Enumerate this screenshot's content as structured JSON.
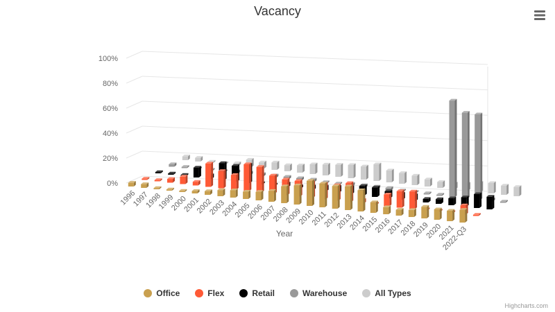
{
  "chart_data": {
    "type": "bar",
    "render": "3d-column",
    "title": "Vacancy",
    "xlabel": "Year",
    "ylabel": "",
    "ylim": [
      0,
      100
    ],
    "y_ticks": [
      "0%",
      "20%",
      "40%",
      "60%",
      "80%",
      "100%"
    ],
    "grid": true,
    "legend_position": "bottom-center",
    "categories": [
      "1996",
      "1997",
      "1998",
      "1999",
      "2000",
      "2001",
      "2002",
      "2003",
      "2004",
      "2005",
      "2006",
      "2007",
      "2008",
      "2009",
      "2010",
      "2011",
      "2012",
      "2013",
      "2014",
      "2015",
      "2016",
      "2017",
      "2018",
      "2019",
      "2020",
      "2021",
      "2022-Q3"
    ],
    "series": [
      {
        "name": "Office",
        "color": "#c9a04f",
        "values": [
          3,
          3,
          1,
          1,
          1,
          2,
          3,
          5,
          6,
          6,
          7,
          9,
          14,
          16,
          21,
          20,
          19,
          20,
          18,
          9,
          6,
          5,
          6,
          10,
          9,
          9,
          11
        ]
      },
      {
        "name": "Flex",
        "color": "#ff5a36",
        "values": [
          1,
          1,
          3,
          6,
          3,
          19,
          14,
          12,
          22,
          21,
          15,
          13,
          13,
          13,
          13,
          13,
          16,
          3,
          1,
          10,
          14,
          15,
          1,
          1,
          1,
          8,
          1
        ]
      },
      {
        "name": "Retail",
        "color": "#000000",
        "values": [
          1,
          1,
          1,
          8,
          3,
          14,
          13,
          15,
          1,
          1,
          3,
          2,
          3,
          4,
          5,
          6,
          8,
          8,
          6,
          5,
          5,
          3,
          4,
          6,
          8,
          12,
          11
        ]
      },
      {
        "name": "Warehouse",
        "color": "#999999",
        "values": [
          2,
          1,
          1,
          1,
          1,
          2,
          2,
          2,
          2,
          2,
          2,
          2,
          1,
          1,
          2,
          2,
          2,
          2,
          1,
          1,
          1,
          1,
          83,
          74,
          74,
          2,
          1
        ]
      },
      {
        "name": "All Types",
        "color": "#cccccc",
        "values": [
          3,
          3,
          1,
          1,
          2,
          6,
          5,
          6,
          5,
          6,
          8,
          9,
          10,
          11,
          11,
          14,
          10,
          9,
          8,
          6,
          5,
          5,
          6,
          8,
          9,
          8,
          8
        ]
      }
    ]
  },
  "menu": {
    "icon": "hamburger-menu-icon"
  },
  "credits": "Highcharts.com"
}
